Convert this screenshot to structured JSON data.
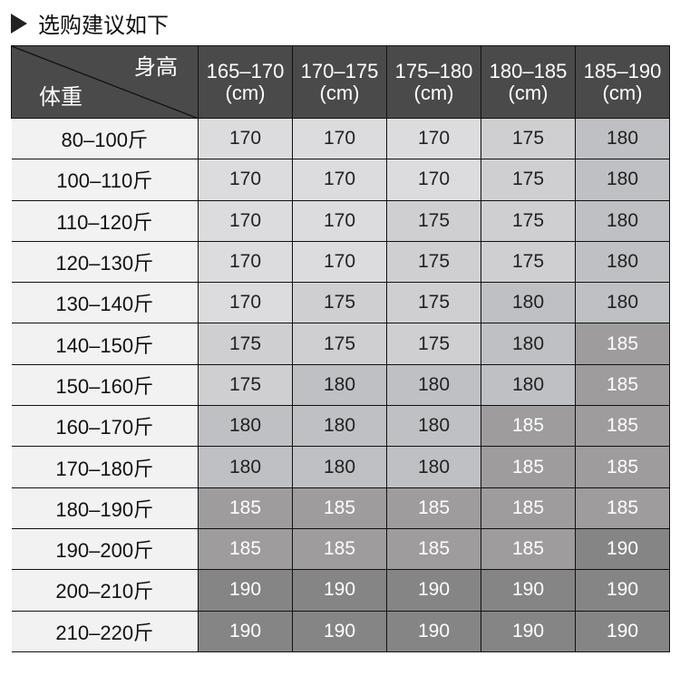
{
  "title": "选购建议如下",
  "table": {
    "corner_height_label": "身高",
    "corner_weight_label": "体重",
    "columns": [
      {
        "range": "165–170",
        "unit": "(cm)"
      },
      {
        "range": "170–175",
        "unit": "(cm)"
      },
      {
        "range": "175–180",
        "unit": "(cm)"
      },
      {
        "range": "180–185",
        "unit": "(cm)"
      },
      {
        "range": "185–190",
        "unit": "(cm)"
      }
    ],
    "rows": [
      {
        "weight": "80–100斤",
        "values": [
          "170",
          "170",
          "170",
          "175",
          "180"
        ]
      },
      {
        "weight": "100–110斤",
        "values": [
          "170",
          "170",
          "170",
          "175",
          "180"
        ]
      },
      {
        "weight": "110–120斤",
        "values": [
          "170",
          "170",
          "175",
          "175",
          "180"
        ]
      },
      {
        "weight": "120–130斤",
        "values": [
          "170",
          "170",
          "175",
          "175",
          "180"
        ]
      },
      {
        "weight": "130–140斤",
        "values": [
          "170",
          "175",
          "175",
          "180",
          "180"
        ]
      },
      {
        "weight": "140–150斤",
        "values": [
          "175",
          "175",
          "175",
          "180",
          "185"
        ]
      },
      {
        "weight": "150–160斤",
        "values": [
          "175",
          "180",
          "180",
          "180",
          "185"
        ]
      },
      {
        "weight": "160–170斤",
        "values": [
          "180",
          "180",
          "180",
          "185",
          "185"
        ]
      },
      {
        "weight": "170–180斤",
        "values": [
          "180",
          "180",
          "180",
          "185",
          "185"
        ]
      },
      {
        "weight": "180–190斤",
        "values": [
          "185",
          "185",
          "185",
          "185",
          "185"
        ]
      },
      {
        "weight": "190–200斤",
        "values": [
          "185",
          "185",
          "185",
          "185",
          "190"
        ]
      },
      {
        "weight": "200–210斤",
        "values": [
          "190",
          "190",
          "190",
          "190",
          "190"
        ]
      },
      {
        "weight": "210–220斤",
        "values": [
          "190",
          "190",
          "190",
          "190",
          "190"
        ]
      }
    ]
  },
  "colors": {
    "header": "#4a4a4a",
    "label_bg": "#f2f2f2",
    "170": "#dcdcde",
    "175": "#cfcfd1",
    "180": "#bfc0c4",
    "185": "#9e9c9d",
    "190": "#858585"
  }
}
